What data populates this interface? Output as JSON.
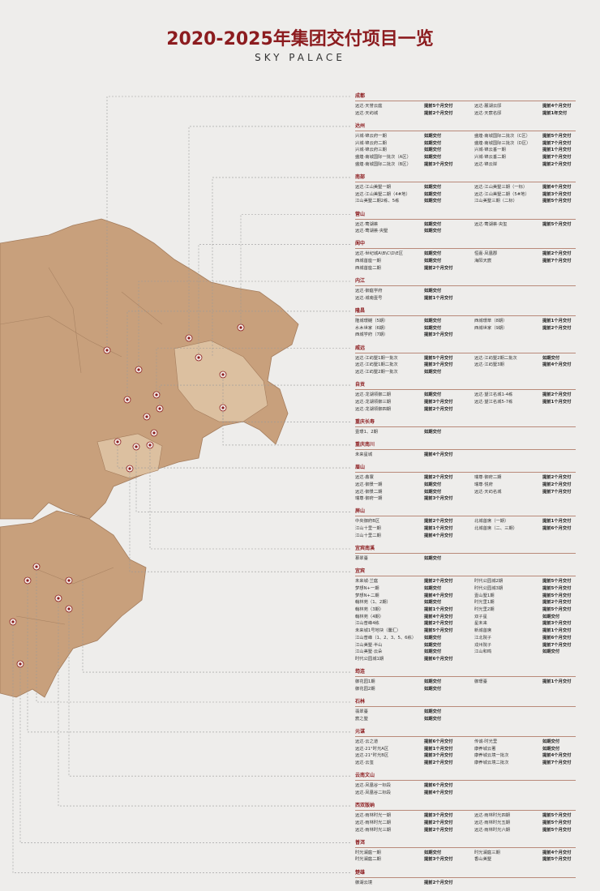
{
  "header": {
    "title": "2020-2025年集团交付项目一览",
    "subtitle": "SKY PALACE"
  },
  "sections": [
    {
      "name": "成都",
      "rows": [
        [
          "远达·天誉云庭",
          "提前5个月交付",
          "远达·麓湖云邸",
          "提前4个月交付"
        ],
        [
          "远达·天屿城",
          "提前2个月交付",
          "远达·天宸名邸",
          "提前1年交付"
        ]
      ]
    },
    {
      "name": "达州",
      "rows": [
        [
          "兴城·锦云府一期",
          "如期交付",
          "盛煌·南城国际二批次（C区）",
          "提前5个月交付"
        ],
        [
          "兴城·锦云府二期",
          "如期交付",
          "盛煌·南城国际三批次（D区）",
          "提前7个月交付"
        ],
        [
          "兴城·锦云府三期",
          "如期交付",
          "兴城·锦云垂一期",
          "提前1个月交付"
        ],
        [
          "盛煌·南城国际一批次（A区）",
          "如期交付",
          "兴城·锦云垂二期",
          "提前7个月交付"
        ],
        [
          "盛煌·南城国际二批次（B区）",
          "提前3个月交付",
          "远达·锦云岸",
          "提前2个月交付"
        ]
      ]
    },
    {
      "name": "南部",
      "rows": [
        [
          "远达·江山美墅一期",
          "如期交付",
          "远达·江山美墅三期（一标）",
          "提前4个月交付"
        ],
        [
          "远达·江山美墅二期（4#地）",
          "如期交付",
          "远达·江山美墅二期（5#地）",
          "提前3个月交付"
        ],
        [
          "江山美墅二期2栋、5栋",
          "如期交付",
          "江山美墅三期（二标）",
          "提前5个月交付"
        ]
      ]
    },
    {
      "name": "营山",
      "rows": [
        [
          "远达·莺湖荟",
          "如期交付",
          "远达·莺湖荟·央玺",
          "提前5个月交付"
        ],
        [
          "远达·莺湖荟·央墅",
          "如期交付",
          "",
          ""
        ]
      ]
    },
    {
      "name": "阆中",
      "rows": [
        [
          "远达·世纪城A\\B\\C\\D\\E区",
          "如期交付",
          "恒嘉·凤凰郡",
          "提前2个月交付"
        ],
        [
          "西城首座一期",
          "如期交付",
          "海阳天宸",
          "提前7个月交付"
        ],
        [
          "西城首座二期",
          "提前2个月交付",
          "",
          ""
        ]
      ]
    },
    {
      "name": "内江",
      "rows": [
        [
          "远达·御庭学府",
          "如期交付",
          "",
          ""
        ],
        [
          "远达·城南壹号",
          "提前1个月交付",
          "",
          ""
        ]
      ]
    },
    {
      "name": "隆昌",
      "rows": [
        [
          "隆城璟樾（5期）",
          "如期交付",
          "西城璟萃（8期）",
          "提前1个月交付"
        ],
        [
          "水木世家（6期）",
          "如期交付",
          "西城世家（9期）",
          "提前2个月交付"
        ],
        [
          "西城学府（7期）",
          "提前3个月交付",
          "",
          ""
        ]
      ]
    },
    {
      "name": "威远",
      "rows": [
        [
          "远达·江屿墅1期一批次",
          "提前5个月交付",
          "远达·江屿墅2期二批次",
          "如期交付"
        ],
        [
          "远达·江屿墅1期二批次",
          "提前3个月交付",
          "远达·江屿墅3期",
          "提前4个月交付"
        ],
        [
          "远达·江屿墅2期一批次",
          "如期交付",
          "",
          ""
        ]
      ]
    },
    {
      "name": "自贡",
      "rows": [
        [
          "远达·龙湖领御二期",
          "如期交付",
          "远达·望江名城1-4栋",
          "提前2个月交付"
        ],
        [
          "远达·龙湖领御三期",
          "提前3个月交付",
          "远达·望江名城5-7栋",
          "提前1个月交付"
        ],
        [
          "远达·龙湖领御四期",
          "提前2个月交付",
          "",
          ""
        ]
      ]
    },
    {
      "name": "重庆长寿",
      "rows": [
        [
          "壹璟1、2期",
          "如期交付",
          "",
          ""
        ]
      ]
    },
    {
      "name": "重庆南川",
      "rows": [
        [
          "未来星城",
          "提前4个月交付",
          "",
          ""
        ]
      ]
    },
    {
      "name": "眉山",
      "rows": [
        [
          "远达·鑫寰",
          "提前2个月交付",
          "瑞尊·御府二期",
          "提前2个月交付"
        ],
        [
          "远达·御景一期",
          "如期交付",
          "瑞尊·悦府",
          "提前2个月交付"
        ],
        [
          "远达·御景二期",
          "如期交付",
          "远达·天屿名城",
          "提前7个月交付"
        ],
        [
          "瑞尊·御府一期",
          "提前3个月交付",
          "",
          ""
        ]
      ]
    },
    {
      "name": "屏山",
      "rows": [
        [
          "中央御府B区",
          "提前2个月交付",
          "北城首席（一期）",
          "提前1个月交付"
        ],
        [
          "江山十里一期",
          "提前1个月交付",
          "北城首席（二、三期）",
          "提前6个月交付"
        ],
        [
          "江山十里二期",
          "提前4个月交付",
          "",
          ""
        ]
      ]
    },
    {
      "name": "宜宾南溪",
      "rows": [
        [
          "慕翠臺",
          "如期交付",
          "",
          ""
        ]
      ]
    },
    {
      "name": "宜宾",
      "rows": [
        [
          "未来城·兰庭",
          "提前2个月交付",
          "时代公园城2期",
          "提前5个月交付"
        ],
        [
          "梦想N+一期",
          "如期交付",
          "时代公园城3期",
          "提前5个月交付"
        ],
        [
          "梦想N+二期",
          "提前4个月交付",
          "壹山墅1期",
          "提前5个月交付"
        ],
        [
          "翰林苑（1、2期）",
          "如期交付",
          "时光里1期",
          "提前2个月交付"
        ],
        [
          "翰林苑（3期）",
          "提前1个月交付",
          "时光里2期",
          "提前5个月交付"
        ],
        [
          "翰林苑（4期）",
          "提前4个月交付",
          "双子星",
          "如期交付"
        ],
        [
          "江山普峰4栋",
          "提前2个月交付",
          "星未来",
          "提前3个月交付"
        ],
        [
          "未来城1号地块（馨汇）",
          "提前5个月交付",
          "新城首席",
          "提前1个月交付"
        ],
        [
          "江山普峰（1、2、3、5、6栋）",
          "如期交付",
          "江北院子",
          "提前6个月交付"
        ],
        [
          "江山美墅·半山",
          "如期交付",
          "戎州院子",
          "提前7个月交付"
        ],
        [
          "江山美墅·云朵",
          "如期交付",
          "江山和鸣",
          "如期交付"
        ],
        [
          "时代公园城1期",
          "提前6个月交付",
          "",
          ""
        ]
      ]
    },
    {
      "name": "筠连",
      "rows": [
        [
          "御花园1期",
          "如期交付",
          "御璟臺",
          "提前1个月交付"
        ],
        [
          "御花园2期",
          "如期交付",
          "",
          ""
        ]
      ]
    },
    {
      "name": "石林",
      "rows": [
        [
          "翡翠臺",
          "如期交付",
          "",
          ""
        ],
        [
          "宸之墅",
          "如期交付",
          "",
          ""
        ]
      ]
    },
    {
      "name": "元谋",
      "rows": [
        [
          "远达·云之道",
          "提前6个月交付",
          "传诚·时光里",
          "如期交付"
        ],
        [
          "远达·21°时光A区",
          "提前1个月交付",
          "康养城云著",
          "如期交付"
        ],
        [
          "远达·21°时光B区",
          "提前3个月交付",
          "康养城云境一批次",
          "提前4个月交付"
        ],
        [
          "远达·云玺",
          "提前2个月交付",
          "康养城云境二批次",
          "提前7个月交付"
        ]
      ]
    },
    {
      "name": "云南文山",
      "rows": [
        [
          "远达·凤凰谷一标段",
          "提前6个月交付",
          "",
          ""
        ],
        [
          "远达·凤凰谷二标段",
          "提前4个月交付",
          "",
          ""
        ]
      ]
    },
    {
      "name": "西双版纳",
      "rows": [
        [
          "远达·雨林时光一期",
          "提前3个月交付",
          "远达·雨林时光四期",
          "提前5个月交付"
        ],
        [
          "远达·雨林时光二期",
          "提前2个月交付",
          "远达·雨林时光五期",
          "提前5个月交付"
        ],
        [
          "远达·雨林时光三期",
          "提前2个月交付",
          "远达·雨林时光六期",
          "提前5个月交付"
        ]
      ]
    },
    {
      "name": "普洱",
      "rows": [
        [
          "时光澜庭一期",
          "如期交付",
          "时光澜庭三期",
          "提前4个月交付"
        ],
        [
          "时光澜庭二期",
          "提前3个月交付",
          "香山美墅",
          "提前5个月交付"
        ]
      ]
    },
    {
      "name": "楚雄",
      "rows": [
        [
          "御湖云境",
          "提前2个月交付",
          "",
          ""
        ]
      ]
    }
  ]
}
